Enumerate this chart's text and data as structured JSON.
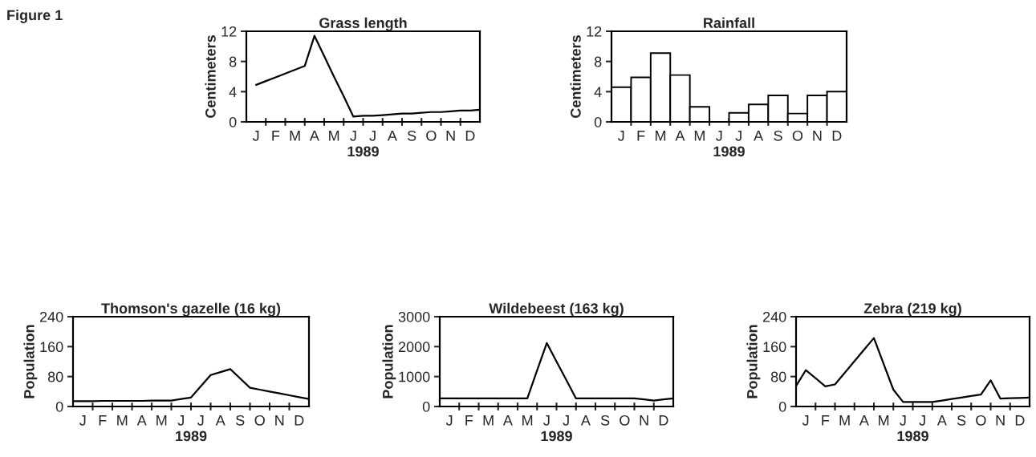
{
  "chart_data": [
    {
      "type": "line",
      "title": "Grass length",
      "ylabel": "Centimeters",
      "xlabel": "1989",
      "annotations": [
        "Figure 1"
      ],
      "categories": [
        null,
        "J",
        null,
        "F",
        null,
        "M",
        null,
        "A",
        null,
        "M",
        null,
        "J",
        null,
        "J",
        null,
        "A",
        null,
        "S",
        null,
        "O",
        null,
        "N",
        null,
        "D",
        null
      ],
      "values": [
        null,
        4.9,
        5.4,
        5.9,
        6.4,
        6.9,
        7.4,
        11.4,
        8.7,
        6.0,
        3.4,
        0.7,
        0.8,
        0.8,
        0.9,
        1.0,
        1.1,
        1.1,
        1.2,
        1.3,
        1.3,
        1.4,
        1.5,
        1.5,
        1.6
      ],
      "color": "#000000",
      "ylim": [
        0,
        12
      ],
      "yticks": [
        0,
        4,
        8,
        12
      ]
    },
    {
      "type": "bar",
      "title": "Rainfall",
      "ylabel": "Centimeters",
      "xlabel": "1989",
      "categories": [
        "J",
        "F",
        "M",
        "A",
        "M",
        "J",
        "J",
        "A",
        "S",
        "O",
        "N",
        "D"
      ],
      "values": [
        4.6,
        5.9,
        9.1,
        6.2,
        2.0,
        null,
        1.2,
        2.3,
        3.5,
        1.1,
        3.5,
        4.0
      ],
      "color": "#ffffff",
      "ylim": [
        0,
        12
      ],
      "yticks": [
        0,
        4,
        8,
        12
      ]
    },
    {
      "type": "line",
      "title": "Thomson's gazelle (16 kg)",
      "ylabel": "Population",
      "xlabel": "1989",
      "categories": [
        null,
        "J",
        null,
        "F",
        null,
        "M",
        null,
        "A",
        null,
        "M",
        null,
        "J",
        null,
        "J",
        null,
        "A",
        null,
        "S",
        null,
        "O",
        null,
        "N",
        null,
        "D",
        null
      ],
      "values": [
        14,
        14,
        14,
        15,
        15,
        15,
        15,
        15,
        16,
        16,
        16,
        20,
        24,
        54,
        84,
        92,
        100,
        75,
        50,
        45,
        40,
        35,
        30,
        25,
        20
      ],
      "color": "#000000",
      "ylim": [
        0,
        240
      ],
      "yticks": [
        0,
        80,
        160,
        240
      ]
    },
    {
      "type": "line",
      "title": "Wildebeest (163 kg)",
      "ylabel": "Population",
      "xlabel": "1989",
      "categories": [
        null,
        "J",
        null,
        "F",
        null,
        "M",
        null,
        "A",
        null,
        "M",
        null,
        "J",
        null,
        "J",
        null,
        "A",
        null,
        "S",
        null,
        "O",
        null,
        "N",
        null,
        "D",
        null
      ],
      "values": [
        270,
        270,
        270,
        270,
        270,
        270,
        270,
        270,
        270,
        270,
        1200,
        2120,
        1500,
        890,
        270,
        270,
        270,
        270,
        270,
        270,
        270,
        240,
        200,
        240,
        270
      ],
      "color": "#000000",
      "ylim": [
        0,
        3000
      ],
      "yticks": [
        0,
        1000,
        2000,
        3000
      ]
    },
    {
      "type": "line",
      "title": "Zebra (219 kg)",
      "ylabel": "Population",
      "xlabel": "1989",
      "categories": [
        null,
        "J",
        null,
        "F",
        null,
        "M",
        null,
        "A",
        null,
        "M",
        null,
        "J",
        null,
        "J",
        null,
        "A",
        null,
        "S",
        null,
        "O",
        null,
        "N",
        null,
        "D",
        null
      ],
      "values": [
        55,
        97,
        76,
        54,
        59,
        90,
        121,
        152,
        183,
        114,
        45,
        12,
        12,
        12,
        12,
        16,
        20,
        24,
        28,
        32,
        70,
        21,
        22,
        23,
        24
      ],
      "color": "#000000",
      "ylim": [
        0,
        240
      ],
      "yticks": [
        0,
        80,
        160,
        240
      ]
    }
  ]
}
